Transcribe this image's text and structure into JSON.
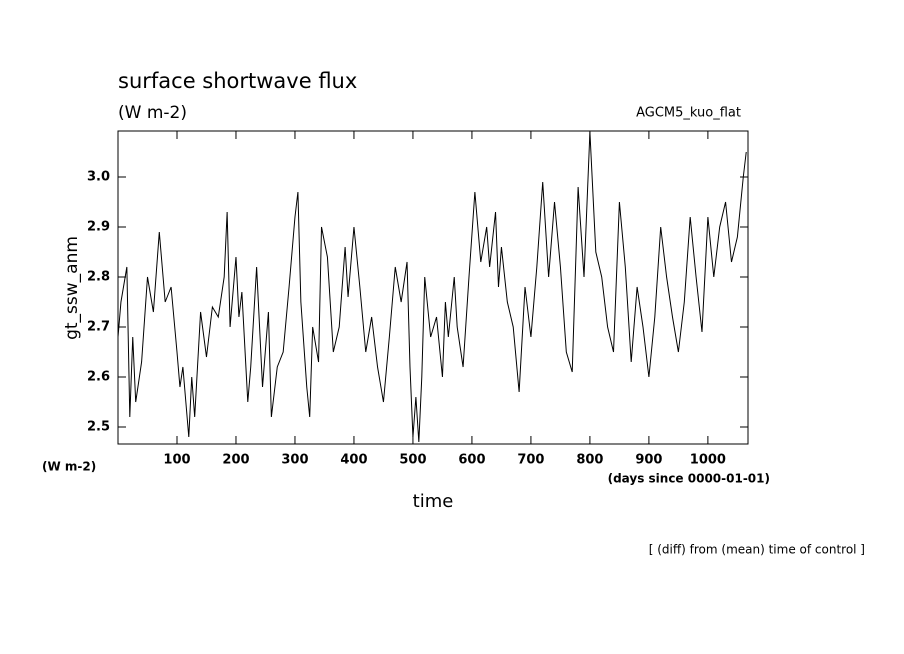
{
  "chart_data": {
    "type": "line",
    "title": "surface shortwave flux",
    "subtitle": "(W m-2)",
    "annotation": "AGCM5_kuo_flat",
    "ylabel": "gt_ssw_anm",
    "y_units": "(W m-2)",
    "xlabel": "time",
    "x_units": "(days since 0000-01-01)",
    "footnote": "[ (diff) from (mean) time of control ]",
    "xlim": [
      0,
      1068
    ],
    "ylim": [
      2.466,
      3.092
    ],
    "xticks": [
      100,
      200,
      300,
      400,
      500,
      600,
      700,
      800,
      900,
      1000
    ],
    "yticks": [
      2.5,
      2.6,
      2.7,
      2.8,
      2.9,
      {
        "value": 3,
        "label": "3.0"
      }
    ],
    "grid": false,
    "series": [
      {
        "name": "gt_ssw_anm",
        "color": "#000000",
        "x": [
          0,
          5,
          15,
          20,
          25,
          30,
          40,
          50,
          60,
          70,
          80,
          90,
          100,
          105,
          110,
          115,
          120,
          125,
          130,
          140,
          150,
          160,
          170,
          180,
          185,
          190,
          200,
          205,
          210,
          220,
          225,
          235,
          245,
          255,
          260,
          270,
          280,
          290,
          300,
          305,
          310,
          320,
          325,
          330,
          340,
          345,
          355,
          365,
          375,
          385,
          390,
          400,
          410,
          420,
          430,
          440,
          450,
          460,
          470,
          480,
          490,
          495,
          500,
          505,
          510,
          515,
          520,
          530,
          540,
          550,
          555,
          560,
          570,
          575,
          585,
          595,
          605,
          615,
          625,
          630,
          640,
          645,
          650,
          660,
          670,
          680,
          690,
          700,
          710,
          720,
          730,
          740,
          750,
          760,
          770,
          780,
          790,
          800,
          810,
          820,
          830,
          840,
          850,
          860,
          870,
          880,
          890,
          900,
          910,
          920,
          930,
          940,
          950,
          960,
          970,
          980,
          990,
          1000,
          1010,
          1020,
          1030,
          1040,
          1050,
          1060,
          1065
        ],
        "values": [
          2.68,
          2.75,
          2.82,
          2.52,
          2.68,
          2.55,
          2.63,
          2.8,
          2.73,
          2.89,
          2.75,
          2.78,
          2.65,
          2.58,
          2.62,
          2.55,
          2.48,
          2.6,
          2.52,
          2.73,
          2.64,
          2.74,
          2.72,
          2.8,
          2.93,
          2.7,
          2.84,
          2.72,
          2.77,
          2.55,
          2.62,
          2.82,
          2.58,
          2.73,
          2.52,
          2.62,
          2.65,
          2.78,
          2.92,
          2.97,
          2.75,
          2.58,
          2.52,
          2.7,
          2.63,
          2.9,
          2.84,
          2.65,
          2.7,
          2.86,
          2.76,
          2.9,
          2.78,
          2.65,
          2.72,
          2.62,
          2.55,
          2.68,
          2.82,
          2.75,
          2.83,
          2.62,
          2.48,
          2.56,
          2.47,
          2.6,
          2.8,
          2.68,
          2.72,
          2.6,
          2.75,
          2.68,
          2.8,
          2.7,
          2.62,
          2.8,
          2.97,
          2.83,
          2.9,
          2.82,
          2.93,
          2.78,
          2.86,
          2.75,
          2.7,
          2.57,
          2.78,
          2.68,
          2.82,
          2.99,
          2.8,
          2.95,
          2.82,
          2.65,
          2.61,
          2.98,
          2.8,
          3.09,
          2.85,
          2.8,
          2.7,
          2.65,
          2.95,
          2.82,
          2.63,
          2.78,
          2.7,
          2.6,
          2.72,
          2.9,
          2.8,
          2.72,
          2.65,
          2.75,
          2.92,
          2.8,
          2.69,
          2.92,
          2.8,
          2.9,
          2.95,
          2.83,
          2.88,
          3.0,
          3.05
        ]
      }
    ]
  }
}
